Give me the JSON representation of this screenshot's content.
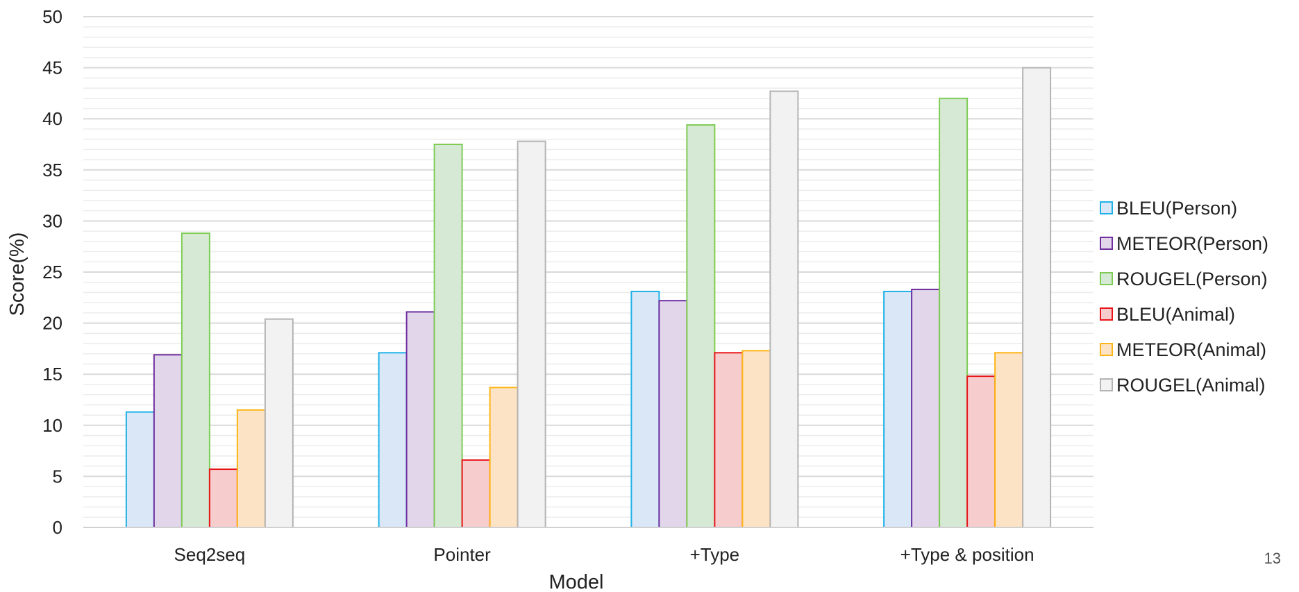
{
  "chart_data": {
    "type": "bar",
    "title": "",
    "xlabel": "Model",
    "ylabel": "Score(%)",
    "ylim": [
      0,
      50
    ],
    "yticks": [
      0,
      5,
      10,
      15,
      20,
      25,
      30,
      35,
      40,
      45,
      50
    ],
    "grid": true,
    "legend_position": "right",
    "categories": [
      "Seq2seq",
      "Pointer",
      "+Type",
      "+Type & position"
    ],
    "series": [
      {
        "name": "BLEU(Person)",
        "values": [
          11.3,
          17.1,
          23.1,
          23.1
        ],
        "fill": "#dae7f7",
        "stroke": "#1fb2e8"
      },
      {
        "name": "METEOR(Person)",
        "values": [
          16.9,
          21.1,
          22.2,
          23.3
        ],
        "fill": "#e2d6ea",
        "stroke": "#7030a0"
      },
      {
        "name": "ROUGEL(Person)",
        "values": [
          28.8,
          37.5,
          39.4,
          42.0
        ],
        "fill": "#d6e9d4",
        "stroke": "#7fcc55"
      },
      {
        "name": "BLEU(Animal)",
        "values": [
          5.7,
          6.6,
          17.1,
          14.8
        ],
        "fill": "#f7cccc",
        "stroke": "#e8151b"
      },
      {
        "name": "METEOR(Animal)",
        "values": [
          11.5,
          13.7,
          17.3,
          17.1
        ],
        "fill": "#fde3c6",
        "stroke": "#fdb515"
      },
      {
        "name": "ROUGEL(Animal)",
        "values": [
          20.4,
          37.8,
          42.7,
          45.0
        ],
        "fill": "#f2f2f2",
        "stroke": "#b4b4b4"
      }
    ]
  },
  "page_number": "13"
}
